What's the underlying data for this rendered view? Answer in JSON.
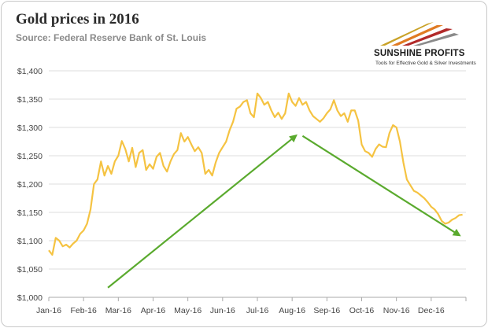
{
  "header": {
    "title": "Gold prices in 2016",
    "subtitle": "Source: Federal Reserve Bank of St. Louis"
  },
  "logo": {
    "name": "SUNSHINE PROFITS",
    "tagline": "Tools for Effective Gold & Silver Investments",
    "colors": [
      "#c9a227",
      "#e07b22",
      "#b22a2a",
      "#8a8a8a"
    ]
  },
  "chart_data": {
    "type": "line",
    "title": "Gold prices in 2016",
    "xlabel": "",
    "ylabel": "",
    "ylim": [
      1000,
      1400
    ],
    "y_ticks": [
      1000,
      1050,
      1100,
      1150,
      1200,
      1250,
      1300,
      1350,
      1400
    ],
    "y_tick_labels": [
      "$1,000",
      "$1,050",
      "$1,100",
      "$1,150",
      "$1,200",
      "$1,250",
      "$1,300",
      "$1,350",
      "$1,400"
    ],
    "x_tick_labels": [
      "Jan-16",
      "Feb-16",
      "Mar-16",
      "Apr-16",
      "May-16",
      "Jun-16",
      "Jul-16",
      "Aug-16",
      "Sep-16",
      "Oct-16",
      "Nov-16",
      "Dec-16"
    ],
    "grid": "horizontal",
    "line_color": "#f5c342",
    "arrow_color": "#5aaa2e",
    "series": [
      {
        "x": [
          0,
          0.1,
          0.2,
          0.3,
          0.4,
          0.5,
          0.6,
          0.7,
          0.8,
          0.9,
          1.0,
          1.1,
          1.2,
          1.3,
          1.4,
          1.5,
          1.6,
          1.7,
          1.8,
          1.9,
          2.0,
          2.1,
          2.2,
          2.3,
          2.4,
          2.5,
          2.6,
          2.7,
          2.8,
          2.9,
          3.0,
          3.1,
          3.2,
          3.3,
          3.4,
          3.5,
          3.6,
          3.7,
          3.8,
          3.9,
          4.0,
          4.1,
          4.2,
          4.3,
          4.4,
          4.5,
          4.6,
          4.7,
          4.8,
          4.9,
          5.0,
          5.1,
          5.2,
          5.3,
          5.4,
          5.5,
          5.6,
          5.7,
          5.8,
          5.9,
          6.0,
          6.1,
          6.2,
          6.3,
          6.4,
          6.5,
          6.6,
          6.7,
          6.8,
          6.9,
          7.0,
          7.1,
          7.2,
          7.3,
          7.4,
          7.5,
          7.6,
          7.7,
          7.8,
          7.9,
          8.0,
          8.1,
          8.2,
          8.3,
          8.4,
          8.5,
          8.6,
          8.7,
          8.8,
          8.9,
          9.0,
          9.1,
          9.2,
          9.3,
          9.4,
          9.5,
          9.6,
          9.7,
          9.8,
          9.9,
          10.0,
          10.1,
          10.2,
          10.3,
          10.4,
          10.5,
          10.6,
          10.7,
          10.8,
          10.9,
          11.0,
          11.1,
          11.2,
          11.3,
          11.4,
          11.5,
          11.6,
          11.7,
          11.8,
          11.9
        ],
        "values": [
          1083,
          1075,
          1105,
          1100,
          1090,
          1093,
          1088,
          1095,
          1100,
          1112,
          1118,
          1130,
          1155,
          1200,
          1208,
          1240,
          1215,
          1232,
          1218,
          1240,
          1250,
          1276,
          1262,
          1240,
          1264,
          1230,
          1255,
          1260,
          1225,
          1235,
          1227,
          1248,
          1255,
          1232,
          1222,
          1240,
          1253,
          1260,
          1290,
          1275,
          1283,
          1270,
          1258,
          1265,
          1255,
          1218,
          1225,
          1215,
          1238,
          1255,
          1265,
          1275,
          1295,
          1310,
          1333,
          1337,
          1345,
          1348,
          1325,
          1318,
          1360,
          1352,
          1340,
          1345,
          1330,
          1318,
          1326,
          1315,
          1325,
          1360,
          1345,
          1338,
          1352,
          1340,
          1345,
          1330,
          1320,
          1315,
          1310,
          1316,
          1325,
          1332,
          1348,
          1330,
          1320,
          1325,
          1310,
          1330,
          1330,
          1312,
          1270,
          1258,
          1255,
          1248,
          1262,
          1270,
          1266,
          1265,
          1290,
          1304,
          1300,
          1275,
          1238,
          1208,
          1198,
          1188,
          1185,
          1180,
          1175,
          1168,
          1160,
          1155,
          1147,
          1135,
          1130,
          1132,
          1137,
          1140,
          1145,
          1146
        ]
      }
    ],
    "arrows": [
      {
        "from": [
          1.7,
          1017
        ],
        "to": [
          7.1,
          1285
        ]
      },
      {
        "from": [
          7.3,
          1285
        ],
        "to": [
          11.8,
          1110
        ]
      }
    ]
  }
}
